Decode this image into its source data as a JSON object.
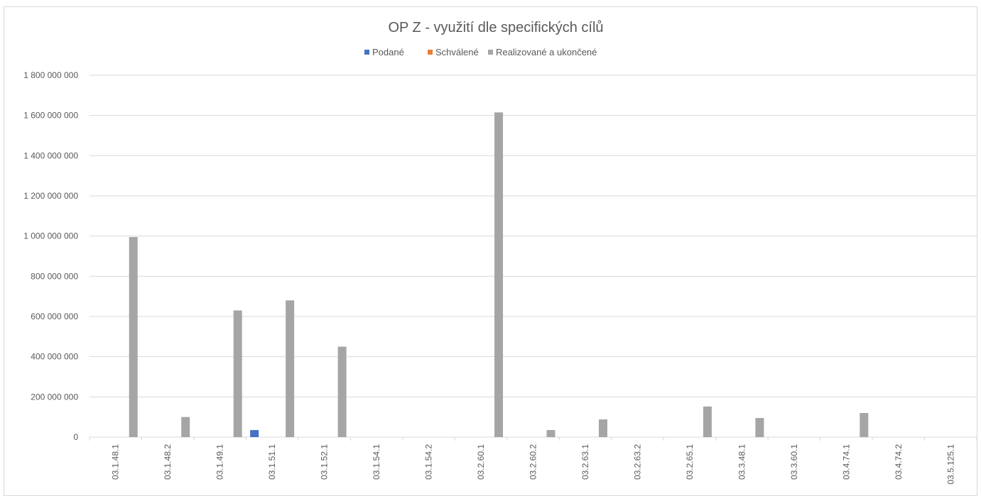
{
  "chart_data": {
    "type": "bar",
    "title": "OP Z - využití dle specifických cílů",
    "xlabel": "",
    "ylabel": "",
    "categories": [
      "03.1.48.1",
      "03.1.48.2",
      "03.1.49.1",
      "03.1.51.1",
      "03.1.52.1",
      "03.1.54.1",
      "03.1.54.2",
      "03.2.60.1",
      "03.2.60.2",
      "03.2.63.1",
      "03.2.63.2",
      "03.2.65.1",
      "03.3.48.1",
      "03.3.60.1",
      "03.4.74.1",
      "03.4.74.2",
      "03.5.125.1"
    ],
    "series": [
      {
        "name": "Podané",
        "color": "#4472c4",
        "values": [
          0,
          0,
          0,
          35000000,
          0,
          0,
          0,
          0,
          0,
          0,
          0,
          0,
          0,
          0,
          0,
          0,
          0
        ]
      },
      {
        "name": "Schválené",
        "color": "#ed7d31",
        "values": [
          0,
          0,
          0,
          0,
          0,
          0,
          0,
          0,
          0,
          0,
          0,
          0,
          0,
          0,
          0,
          0,
          0
        ]
      },
      {
        "name": "Realizované a ukončené",
        "color": "#a5a5a5",
        "values": [
          995000000,
          100000000,
          630000000,
          680000000,
          450000000,
          0,
          0,
          1615000000,
          35000000,
          88000000,
          0,
          152000000,
          95000000,
          0,
          120000000,
          0,
          0
        ]
      }
    ],
    "ylim": [
      0,
      1800000000
    ],
    "yticks": [
      0,
      200000000,
      400000000,
      600000000,
      800000000,
      1000000000,
      1200000000,
      1400000000,
      1600000000,
      1800000000
    ],
    "ytick_labels": [
      "0",
      "200 000 000",
      "400 000 000",
      "600 000 000",
      "800 000 000",
      "1 000 000 000",
      "1 200 000 000",
      "1 400 000 000",
      "1 600 000 000",
      "1 800 000 000"
    ],
    "legend_position": "top-center",
    "grid": true
  }
}
